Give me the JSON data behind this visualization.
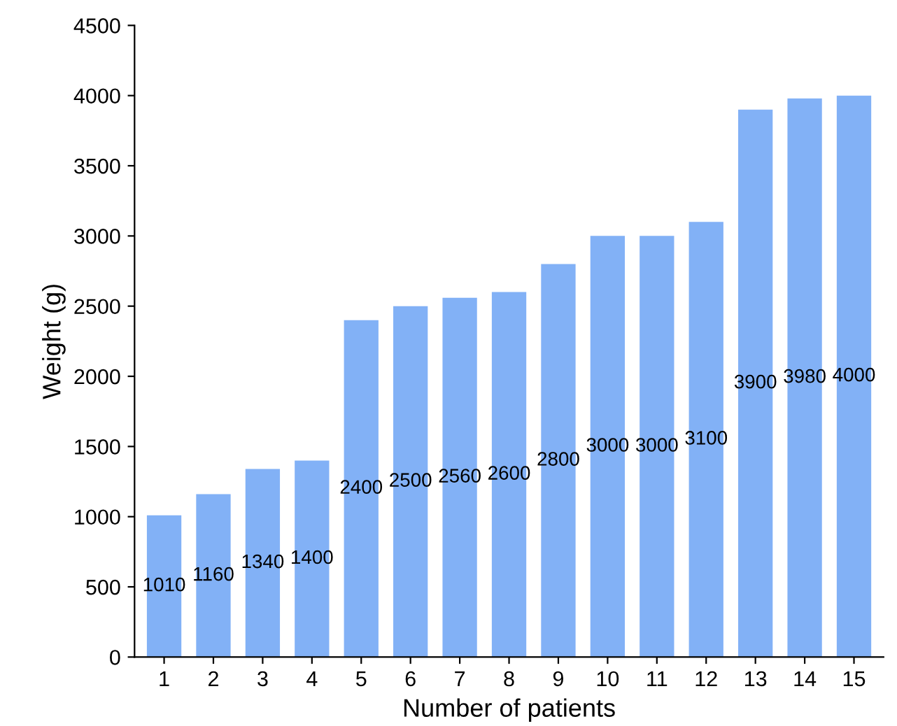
{
  "chart_data": {
    "type": "bar",
    "xlabel": "Number of patients",
    "ylabel": "Weight (g)",
    "categories": [
      "1",
      "2",
      "3",
      "4",
      "5",
      "6",
      "7",
      "8",
      "9",
      "10",
      "11",
      "12",
      "13",
      "14",
      "15"
    ],
    "values": [
      1010,
      1160,
      1340,
      1400,
      2400,
      2500,
      2560,
      2600,
      2800,
      3000,
      3000,
      3100,
      3900,
      3980,
      4000
    ],
    "color": "#82b1f6",
    "ylim": [
      0,
      4500
    ],
    "yticks": [
      0,
      500,
      1000,
      1500,
      2000,
      2500,
      3000,
      3500,
      4000,
      4500
    ],
    "data_labels": true,
    "grid": false,
    "legend": false
  }
}
